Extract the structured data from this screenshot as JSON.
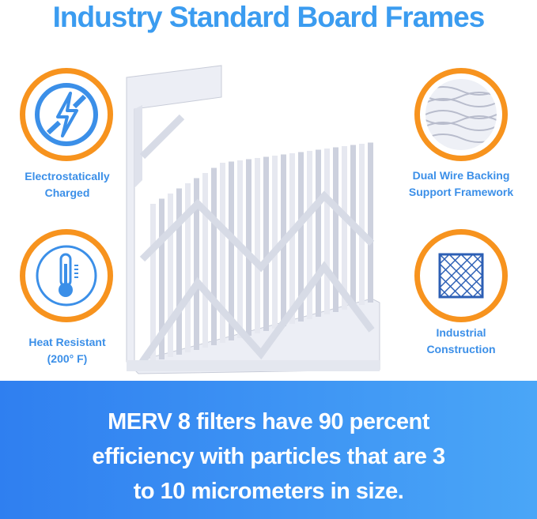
{
  "title": "Industry Standard Board Frames",
  "features": [
    {
      "icon": "no-lightning-icon",
      "line1": "Electrostatically",
      "line2": "Charged"
    },
    {
      "icon": "thermometer-icon",
      "line1": "Heat Resistant",
      "line2": "(200° F)"
    },
    {
      "icon": "wire-mesh-icon",
      "line1": "Dual Wire Backing",
      "line2": "Support Framework"
    },
    {
      "icon": "grid-frame-icon",
      "line1": "Industrial",
      "line2": "Construction"
    }
  ],
  "banner": {
    "line1": "MERV 8 filters have 90 percent",
    "line2": "efficiency with particles that are 3",
    "line3": "to 10 micrometers in size."
  },
  "colors": {
    "accent_blue": "#3b9cf0",
    "ring_orange": "#f7931e",
    "band_start": "#2f7ff0",
    "band_end": "#4aa6f7"
  }
}
